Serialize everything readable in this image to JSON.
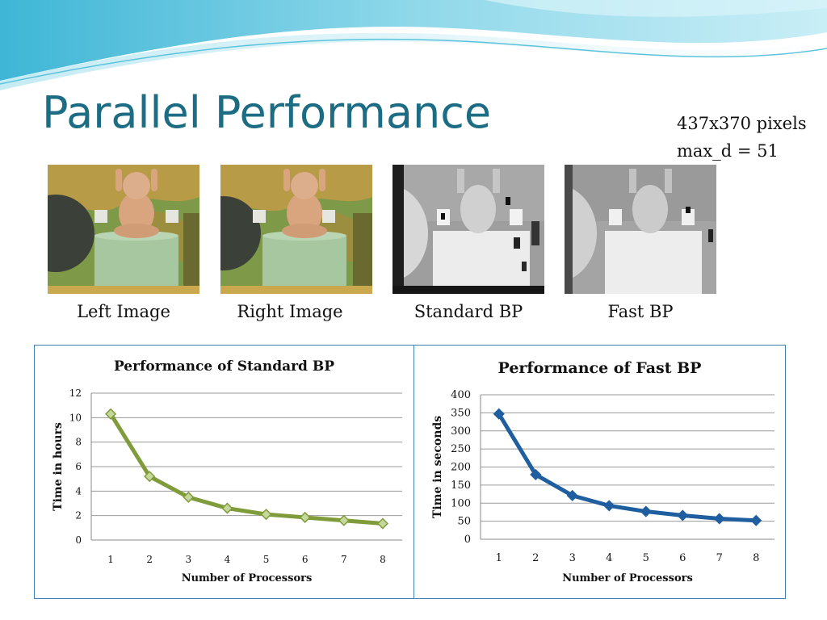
{
  "slide": {
    "title": "Parallel Performance",
    "info_line1": "437x370 pixels",
    "info_line2": "max_d = 51"
  },
  "images": [
    {
      "caption": "Left Image"
    },
    {
      "caption": "Right Image"
    },
    {
      "caption": "Standard BP"
    },
    {
      "caption": "Fast BP"
    }
  ],
  "colors": {
    "title": "#1c6c84",
    "panel_border": "#3f7fb4",
    "series_standard": "#7f9b3a",
    "series_fast": "#1f5fa0"
  },
  "chart_data": [
    {
      "type": "line",
      "title": "Performance of Standard BP",
      "xlabel": "Number of Processors",
      "ylabel": "Time in hours",
      "x": [
        1,
        2,
        3,
        4,
        5,
        6,
        7,
        8
      ],
      "x_tick_labels": [
        "1",
        "2",
        "3",
        "4",
        "5",
        "6",
        "7",
        "8"
      ],
      "y_ticks": [
        0,
        2,
        4,
        6,
        8,
        10,
        12
      ],
      "y_tick_labels": [
        "0",
        "2",
        "4",
        "6",
        "8",
        "10",
        "12"
      ],
      "ylim": [
        0,
        12
      ],
      "grid": true,
      "series": [
        {
          "values": [
            10.3,
            5.2,
            3.5,
            2.6,
            2.1,
            1.85,
            1.6,
            1.35
          ],
          "color": "#7f9b3a",
          "marker": "diamond"
        }
      ]
    },
    {
      "type": "line",
      "title": "Performance of Fast BP",
      "xlabel": "Number of Processors",
      "ylabel": "Time in seconds",
      "x": [
        1,
        2,
        3,
        4,
        5,
        6,
        7,
        8
      ],
      "x_tick_labels": [
        "1",
        "2",
        "3",
        "4",
        "5",
        "6",
        "7",
        "8"
      ],
      "y_ticks": [
        0,
        50,
        100,
        150,
        200,
        250,
        300,
        350,
        400
      ],
      "y_tick_labels": [
        "0",
        "50",
        "100",
        "150",
        "200",
        "250",
        "300",
        "350",
        "400"
      ],
      "ylim": [
        0,
        400
      ],
      "grid": true,
      "series": [
        {
          "values": [
            347,
            179,
            121,
            93,
            77,
            66,
            57,
            52
          ],
          "color": "#1f5fa0",
          "marker": "diamond"
        }
      ]
    }
  ]
}
